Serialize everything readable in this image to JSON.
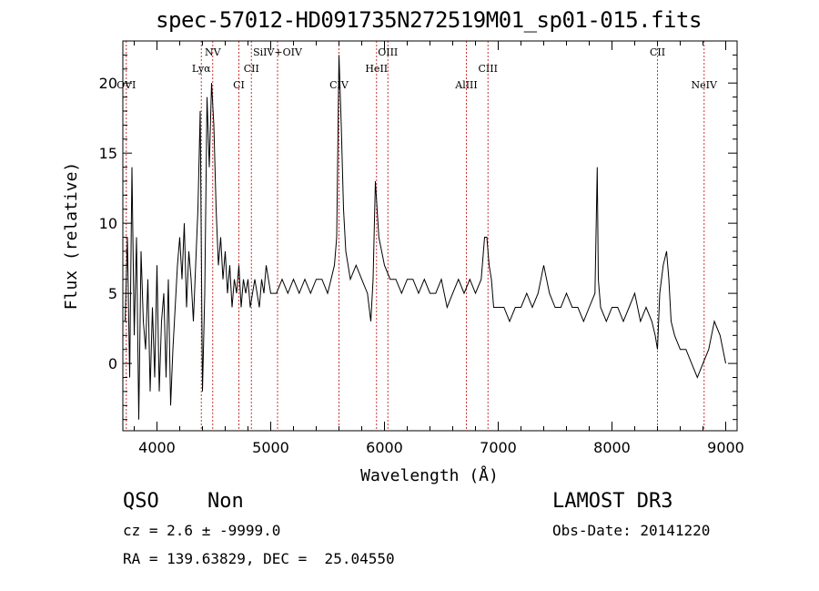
{
  "chart_data": {
    "type": "line",
    "title": "spec-57012-HD091735N272519M01_sp01-015.fits",
    "xlabel": "Wavelength (Å)",
    "ylabel": "Flux (relative)",
    "xlim": [
      3700,
      9100
    ],
    "ylim": [
      -4.8,
      23
    ],
    "xticks": [
      4000,
      5000,
      6000,
      7000,
      8000,
      9000
    ],
    "yticks": [
      0,
      5,
      10,
      15,
      20
    ],
    "line_color": "#000000",
    "marker_color": "#cc3333",
    "series": [
      {
        "x": [
          3720,
          3740,
          3760,
          3780,
          3800,
          3820,
          3840,
          3860,
          3880,
          3900,
          3920,
          3940,
          3960,
          3980,
          4000,
          4020,
          4040,
          4060,
          4080,
          4100,
          4120,
          4140,
          4160,
          4180,
          4200,
          4220,
          4240,
          4260,
          4280,
          4300,
          4320,
          4340,
          4360,
          4380,
          4400,
          4420,
          4440,
          4460,
          4480,
          4500,
          4520,
          4540,
          4560,
          4580,
          4600,
          4620,
          4640,
          4660,
          4680,
          4700,
          4720,
          4740,
          4760,
          4780,
          4800,
          4820,
          4840,
          4860,
          4880,
          4900,
          4920,
          4940,
          4960,
          4980,
          5000,
          5050,
          5100,
          5150,
          5200,
          5250,
          5300,
          5350,
          5400,
          5450,
          5500,
          5530,
          5560,
          5580,
          5600,
          5620,
          5640,
          5660,
          5700,
          5750,
          5800,
          5850,
          5880,
          5900,
          5920,
          5950,
          6000,
          6050,
          6100,
          6150,
          6200,
          6250,
          6300,
          6350,
          6400,
          6450,
          6500,
          6550,
          6600,
          6650,
          6700,
          6750,
          6800,
          6850,
          6880,
          6900,
          6920,
          6940,
          6960,
          7000,
          7050,
          7100,
          7150,
          7200,
          7250,
          7300,
          7350,
          7400,
          7450,
          7500,
          7550,
          7600,
          7650,
          7700,
          7750,
          7800,
          7850,
          7870,
          7880,
          7900,
          7950,
          8000,
          8050,
          8100,
          8150,
          8200,
          8250,
          8300,
          8350,
          8380,
          8400,
          8420,
          8450,
          8480,
          8500,
          8520,
          8550,
          8600,
          8650,
          8700,
          8750,
          8800,
          8850,
          8900,
          8950,
          9000
        ],
        "y": [
          3,
          9,
          -1,
          14,
          2,
          9,
          -4,
          8,
          3,
          1,
          6,
          -2,
          4,
          -1,
          7,
          -2,
          3,
          5,
          -1,
          6,
          -3,
          1,
          4,
          7,
          9,
          6,
          10,
          4,
          8,
          6,
          3,
          7,
          11,
          18,
          -2,
          5,
          19,
          14,
          20,
          17,
          11,
          7,
          9,
          6,
          8,
          5,
          7,
          4,
          6,
          5,
          7,
          4,
          6,
          5,
          6,
          4,
          5,
          6,
          5,
          4,
          6,
          5,
          7,
          6,
          5,
          5,
          6,
          5,
          6,
          5,
          6,
          5,
          6,
          6,
          5,
          6,
          7,
          9,
          22,
          17,
          11,
          8,
          6,
          7,
          6,
          5,
          3,
          6,
          13,
          9,
          7,
          6,
          6,
          5,
          6,
          6,
          5,
          6,
          5,
          5,
          6,
          4,
          5,
          6,
          5,
          6,
          5,
          6,
          9,
          9,
          7,
          6,
          4,
          4,
          4,
          3,
          4,
          4,
          5,
          4,
          5,
          7,
          5,
          4,
          4,
          5,
          4,
          4,
          3,
          4,
          5,
          14,
          6,
          4,
          3,
          4,
          4,
          3,
          4,
          5,
          3,
          4,
          3,
          2,
          1,
          5,
          7,
          8,
          6,
          3,
          2,
          1,
          1,
          0,
          -1,
          0,
          1,
          3,
          2,
          0
        ]
      }
    ],
    "lines": [
      {
        "label": "OVI",
        "x": 3730,
        "tier": 3
      },
      {
        "label": "Lyα",
        "x": 4390,
        "tier": 2
      },
      {
        "label": "NV",
        "x": 4490,
        "tier": 1
      },
      {
        "label": "CI",
        "x": 4720,
        "tier": 3
      },
      {
        "label": "CII",
        "x": 4830,
        "tier": 2
      },
      {
        "label": "SiIV+OIV",
        "x": 5060,
        "tier": 1
      },
      {
        "label": "CIV",
        "x": 5600,
        "tier": 3
      },
      {
        "label": "HeII",
        "x": 5930,
        "tier": 2
      },
      {
        "label": "OIII",
        "x": 6030,
        "tier": 1
      },
      {
        "label": "AlIII",
        "x": 6720,
        "tier": 3
      },
      {
        "label": "CIII",
        "x": 6910,
        "tier": 2
      },
      {
        "label": "CII",
        "x": 8400,
        "tier": 1
      },
      {
        "label": "NeIV",
        "x": 8810,
        "tier": 3
      }
    ]
  },
  "info": {
    "class": "QSO",
    "subclass": "Non",
    "survey": "LAMOST DR3",
    "cz": "cz = 2.6 ± -9999.0",
    "obs_date": "Obs-Date: 20141220",
    "radec": "RA = 139.63829, DEC =  25.04550"
  }
}
